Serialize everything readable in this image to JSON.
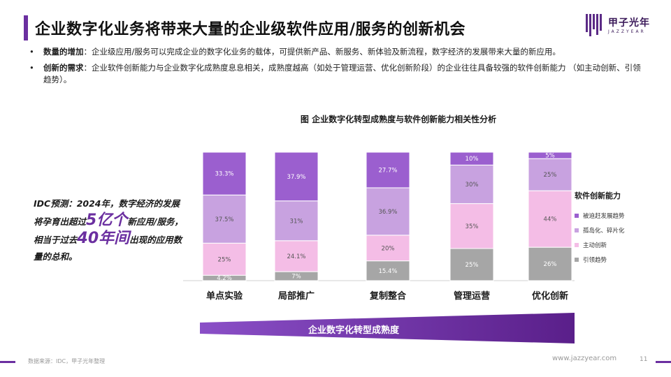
{
  "page": {
    "title": "企业数字化业务将带来大量的企业级软件应用/服务的创新机会",
    "logo_text": "甲子光年",
    "logo_sub": "JAZZYEAR"
  },
  "bullets": [
    {
      "label": "数量的增加",
      "text": "：企业级应用/服务可以完成企业的数字化业务的载体，可提供新产品、新服务、新体验及新流程，数字经济的发展带来大量的新应用。"
    },
    {
      "label": "创新的需求",
      "text": "：企业软件创新能力与企业数字化成熟度息息相关，成熟度越高（如处于管理运营、优化创新阶段）的企业往往具备较强的软件创新能力 （如主动创新、引领趋势）。"
    }
  ],
  "callout": {
    "part1": "IDC预测：2024年，数字经济的发展将孕育出超过",
    "big1": "5亿个",
    "part2": "新应用/服务，相当于过去",
    "big2": "40年间",
    "part3": "出现的应用数量的总和。"
  },
  "chart_data": {
    "type": "bar",
    "stacked": true,
    "title": "图 企业数字化转型成熟度与软件创新能力相关性分析",
    "categories": [
      "单点实验",
      "局部推广",
      "复制整合",
      "管理运营",
      "优化创新"
    ],
    "series": [
      {
        "name": "引领趋势",
        "color": "#a6a6a6",
        "values": [
          4.2,
          7,
          15.4,
          25,
          26
        ],
        "labels": [
          "4.2%",
          "7%",
          "15.4%",
          "25%",
          "26%"
        ]
      },
      {
        "name": "主动创新",
        "color": "#f4bde6",
        "values": [
          25,
          24.1,
          20,
          35,
          44
        ],
        "labels": [
          "25%",
          "24.1%",
          "20%",
          "35%",
          "44%"
        ]
      },
      {
        "name": "孤岛化、碎片化",
        "color": "#c8a2e0",
        "values": [
          37.5,
          31,
          36.9,
          30,
          25
        ],
        "labels": [
          "37.5%",
          "31%",
          "36.9%",
          "30%",
          "25%"
        ]
      },
      {
        "name": "被迫赶发展趋势",
        "color": "#9b5fcf",
        "values": [
          33.3,
          37.9,
          27.7,
          10,
          5
        ],
        "labels": [
          "33.3%",
          "37.9%",
          "27.7%",
          "10%",
          "5%"
        ]
      }
    ],
    "ylim": [
      0,
      100
    ],
    "legend_title": "软件创新能力",
    "legend_position": "right",
    "grid": false
  },
  "maturity_label": "企业数字化转型成熟度",
  "footer": {
    "source": "数据来源：IDC，甲子光年整理",
    "website": "www.jazzyear.com",
    "page_number": "11"
  }
}
